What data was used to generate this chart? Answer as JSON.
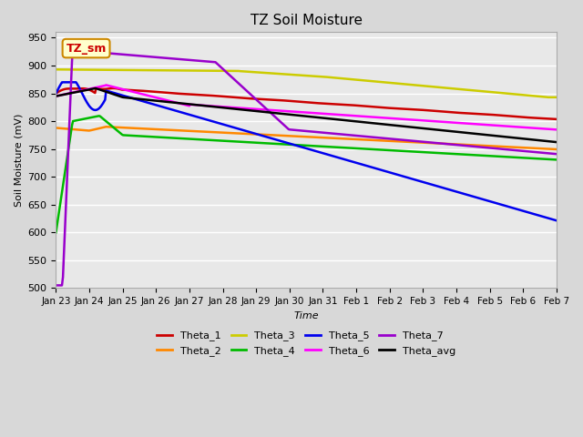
{
  "title": "TZ Soil Moisture",
  "xlabel": "Time",
  "ylabel": "Soil Moisture (mV)",
  "ylim": [
    500,
    960
  ],
  "yticks": [
    500,
    550,
    600,
    650,
    700,
    750,
    800,
    850,
    900,
    950
  ],
  "annotation_label": "TZ_sm",
  "annotation_color": "#cc0000",
  "annotation_bg": "#ffffcc",
  "annotation_edge": "#cc8800",
  "tick_labels": [
    "Jan 23",
    "Jan 24",
    "Jan 25",
    "Jan 26",
    "Jan 27",
    "Jan 28",
    "Jan 29",
    "Jan 30",
    "Jan 31",
    "Feb 1",
    "Feb 2",
    "Feb 3",
    "Feb 4",
    "Feb 5",
    "Feb 6",
    "Feb 7"
  ],
  "colors": {
    "Theta_1": "#cc0000",
    "Theta_2": "#ff8800",
    "Theta_3": "#cccc00",
    "Theta_4": "#00bb00",
    "Theta_5": "#0000ee",
    "Theta_6": "#ff00ff",
    "Theta_7": "#9900cc",
    "Theta_avg": "#000000"
  }
}
